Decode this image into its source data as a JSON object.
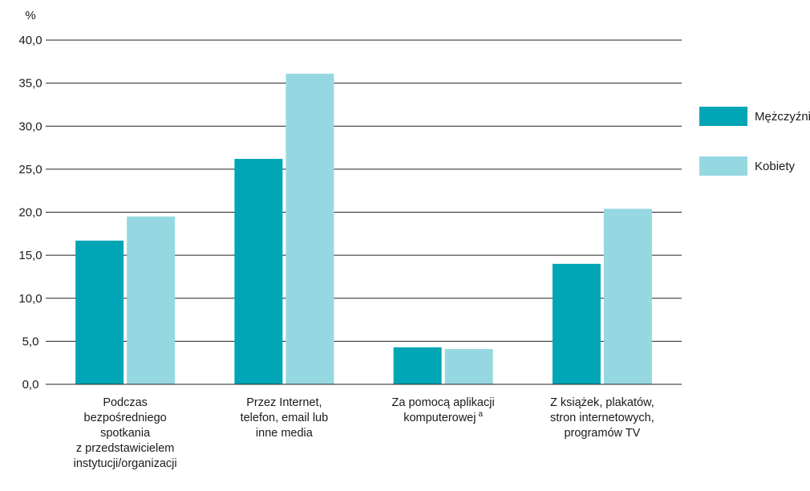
{
  "colors": {
    "men": "#00a6b5",
    "women": "#96d8e1",
    "grid": "#222222",
    "text": "#1a1a1a"
  },
  "chart_data": {
    "type": "bar",
    "ylabel": "%",
    "ylim": [
      0,
      40
    ],
    "yticks": [
      "0,0",
      "5,0",
      "10,0",
      "15,0",
      "20,0",
      "25,0",
      "30,0",
      "35,0",
      "40,0"
    ],
    "grid": true,
    "legend_position": "right",
    "categories": [
      [
        "Podczas",
        "bezpośredniego",
        "spotkania",
        "z przedstawicielem",
        "instytucji/organizacji"
      ],
      [
        "Przez Internet,",
        "telefon, email lub",
        "inne media"
      ],
      [
        "Za pomocą aplikacji",
        "komputerowej"
      ],
      [
        "Z książek, plakatów,",
        "stron internetowych,",
        "programów TV"
      ]
    ],
    "footnote_marker": "a",
    "footnote_category_index": 2,
    "series": [
      {
        "name": "Mężczyźni",
        "values": [
          16.7,
          26.2,
          4.3,
          14.0
        ]
      },
      {
        "name": "Kobiety",
        "values": [
          19.5,
          36.1,
          4.1,
          20.4
        ]
      }
    ]
  }
}
